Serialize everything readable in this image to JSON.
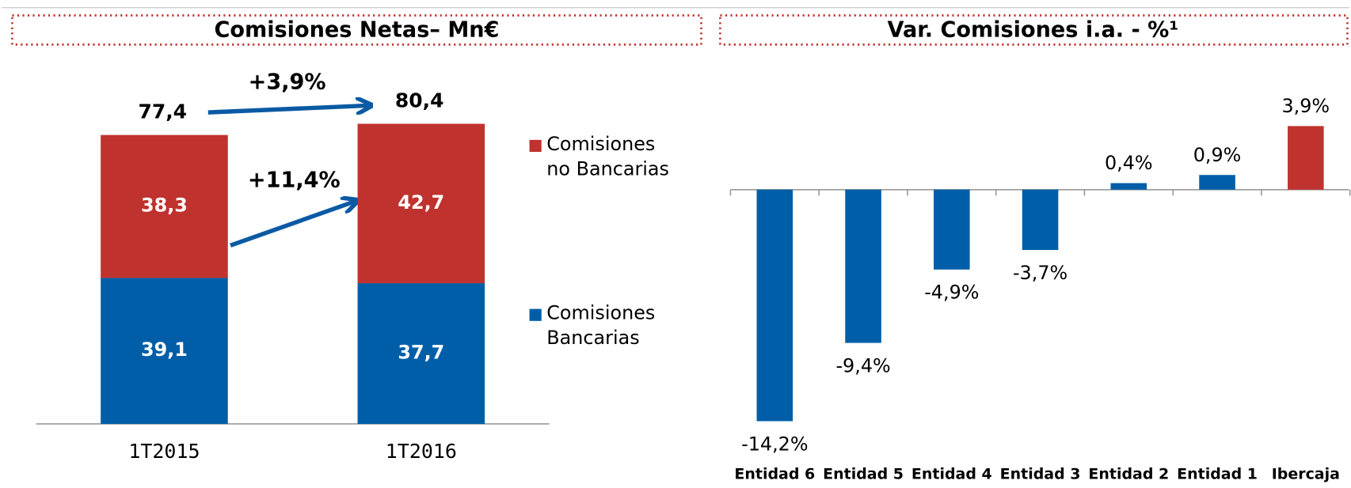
{
  "chart_data": [
    {
      "type": "stacked-bar",
      "title": "Comisiones Netas– Mn€",
      "categories": [
        "1T2015",
        "1T2016"
      ],
      "series": [
        {
          "name": "Comisiones Bancarias",
          "color": "#005ea8",
          "values": [
            39.1,
            37.7
          ],
          "value_labels": [
            "39,1",
            "37,7"
          ]
        },
        {
          "name": "Comisiones no Bancarias",
          "color": "#c0322e",
          "values": [
            38.3,
            42.7
          ],
          "value_labels": [
            "38,3",
            "42,7"
          ]
        }
      ],
      "totals": [
        77.4,
        80.4
      ],
      "total_labels": [
        "77,4",
        "80,4"
      ],
      "annotations": [
        "+3,9%",
        "+11,4%"
      ]
    },
    {
      "type": "bar",
      "title": "Var. Comisiones i.a. - %¹",
      "categories": [
        "Entidad 6",
        "Entidad 5",
        "Entidad 4",
        "Entidad 3",
        "Entidad 2",
        "Entidad 1",
        "Ibercaja"
      ],
      "values": [
        -14.2,
        -9.4,
        -4.9,
        -3.7,
        0.4,
        0.9,
        3.9
      ],
      "value_labels": [
        "-14,2%",
        "-9,4%",
        "-4,9%",
        "-3,7%",
        "0,4%",
        "0,9%",
        "3,9%"
      ],
      "colors": [
        "#005ea8",
        "#005ea8",
        "#005ea8",
        "#005ea8",
        "#005ea8",
        "#005ea8",
        "#c0322e"
      ]
    }
  ]
}
